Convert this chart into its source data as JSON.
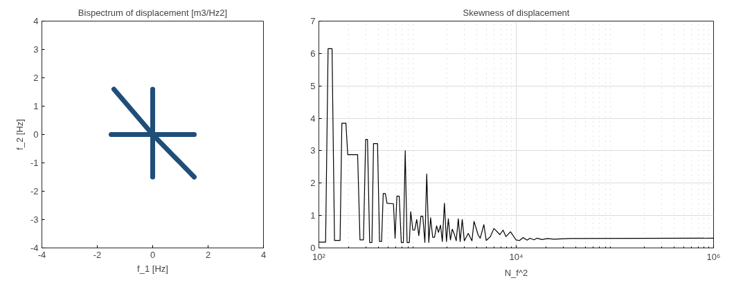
{
  "chart_data": [
    {
      "type": "line",
      "title": "Bispectrum of displacement [m3/Hz2]",
      "xlabel": "f_1 [Hz]",
      "ylabel": "f_2 [Hz]",
      "xlim": [
        -4,
        4
      ],
      "ylim": [
        -4,
        4
      ],
      "xticks": [
        -4,
        -2,
        0,
        2,
        4
      ],
      "yticks": [
        -4,
        -3,
        -2,
        -1,
        0,
        1,
        2,
        3,
        4
      ],
      "series": [
        {
          "color": "#1f4e79",
          "x": [
            -1.4,
            0,
            1.5
          ],
          "values": [
            1.6,
            0,
            -1.5
          ]
        },
        {
          "color": "#1f4e79",
          "x": [
            0,
            0,
            0
          ],
          "values": [
            1.6,
            0,
            -1.5
          ]
        },
        {
          "color": "#1f4e79",
          "x": [
            -1.5,
            0,
            1.5
          ],
          "values": [
            0,
            0,
            0
          ]
        }
      ]
    },
    {
      "type": "line",
      "title": "Skewness of displacement",
      "xlabel": "N_f^2",
      "log": "x",
      "grid": true,
      "xlim": [
        100,
        1000000
      ],
      "ylim": [
        0,
        7
      ],
      "xticks": [
        {
          "value": 100,
          "label": "10²"
        },
        {
          "value": 10000,
          "label": "10⁴"
        },
        {
          "value": 1000000,
          "label": "10⁶"
        }
      ],
      "yticks": [
        0,
        1,
        2,
        3,
        4,
        5,
        6,
        7
      ],
      "series": [
        {
          "color": "#000000",
          "x": [
            100,
            117,
            124,
            136,
            144,
            164,
            171,
            188,
            196,
            247,
            261,
            283,
            298,
            311,
            327,
            345,
            358,
            393,
            412,
            432,
            449,
            472,
            490,
            570,
            592,
            618,
            652,
            684,
            718,
            750,
            783,
            826,
            853,
            896,
            935,
            981,
            1030,
            1082,
            1130,
            1186,
            1239,
            1300,
            1356,
            1423,
            1486,
            1560,
            1629,
            1710,
            1783,
            1872,
            1963,
            2051,
            2153,
            2248,
            2360,
            2465,
            2588,
            2703,
            2837,
            2979,
            3266,
            3559,
            3735,
            4115,
            4317,
            4702,
            4963,
            5474,
            5943,
            6839,
            7345,
            7870,
            8750,
            9931,
            10814,
            11749,
            12882,
            13804,
            15136,
            16218,
            18197,
            20893,
            23988,
            34674,
            1000000
          ],
          "values": [
            0.18,
            0.18,
            6.15,
            6.15,
            0.23,
            0.23,
            3.85,
            3.85,
            2.88,
            2.88,
            0.25,
            0.25,
            3.35,
            3.35,
            0.17,
            0.17,
            3.22,
            3.22,
            0.2,
            0.2,
            1.68,
            1.68,
            1.38,
            1.36,
            0.3,
            1.6,
            1.6,
            0.17,
            0.17,
            3.0,
            0.17,
            0.17,
            1.12,
            0.55,
            0.55,
            0.88,
            0.38,
            0.98,
            0.98,
            0.17,
            2.28,
            0.17,
            0.93,
            0.33,
            0.33,
            0.68,
            0.48,
            0.7,
            0.2,
            1.38,
            0.2,
            0.9,
            0.25,
            0.58,
            0.42,
            0.22,
            0.9,
            0.2,
            0.88,
            0.22,
            0.45,
            0.22,
            0.82,
            0.4,
            0.3,
            0.72,
            0.23,
            0.35,
            0.6,
            0.41,
            0.55,
            0.35,
            0.5,
            0.25,
            0.23,
            0.32,
            0.24,
            0.3,
            0.25,
            0.3,
            0.26,
            0.29,
            0.27,
            0.29,
            0.3
          ]
        }
      ]
    }
  ]
}
